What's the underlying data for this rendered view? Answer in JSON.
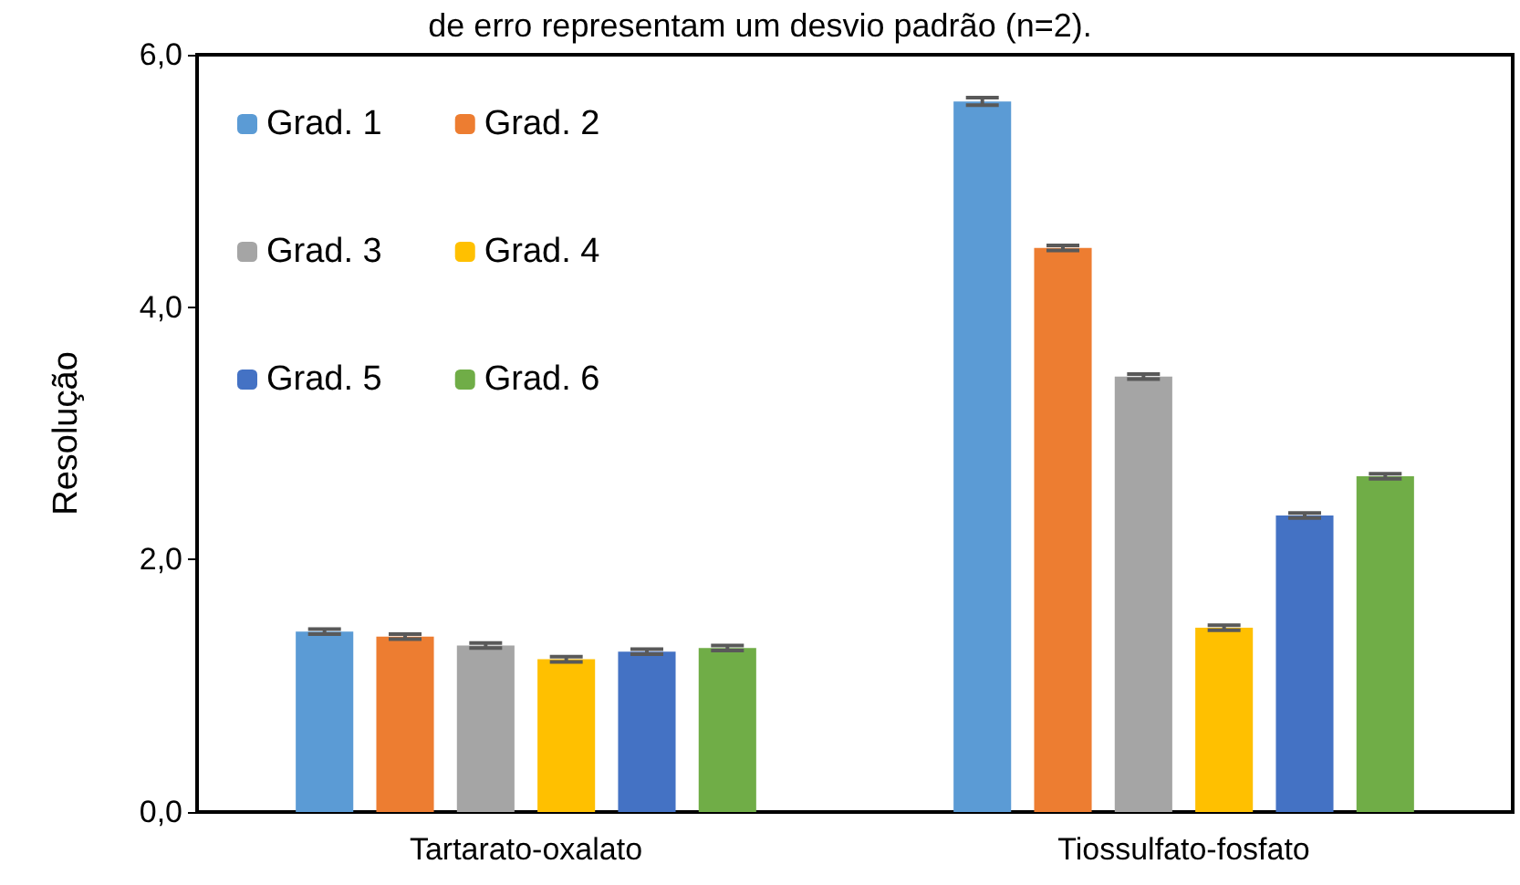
{
  "chart_data": {
    "type": "bar",
    "subtitle": "de erro representam um desvio padrão (n=2).",
    "ylabel": "Resolução",
    "categories": [
      "Tartarato-oxalato",
      "Tiossulfato-fosfato"
    ],
    "series": [
      {
        "name": "Grad. 1",
        "color": "#5b9bd5",
        "values": [
          1.43,
          5.63
        ],
        "errors": [
          0.02,
          0.03
        ]
      },
      {
        "name": "Grad. 2",
        "color": "#ed7d31",
        "values": [
          1.39,
          4.47
        ],
        "errors": [
          0.02,
          0.02
        ]
      },
      {
        "name": "Grad. 3",
        "color": "#a5a5a5",
        "values": [
          1.32,
          3.45
        ],
        "errors": [
          0.02,
          0.02
        ]
      },
      {
        "name": "Grad. 4",
        "color": "#ffc000",
        "values": [
          1.21,
          1.46
        ],
        "errors": [
          0.02,
          0.02
        ]
      },
      {
        "name": "Grad. 5",
        "color": "#4472c4",
        "values": [
          1.27,
          2.35
        ],
        "errors": [
          0.02,
          0.02
        ]
      },
      {
        "name": "Grad. 6",
        "color": "#70ad47",
        "values": [
          1.3,
          2.66
        ],
        "errors": [
          0.02,
          0.02
        ]
      }
    ],
    "ylim": [
      0,
      6
    ],
    "yticks": [
      {
        "value": 0,
        "label": "0,0"
      },
      {
        "value": 2,
        "label": "2,0"
      },
      {
        "value": 4,
        "label": "4,0"
      },
      {
        "value": 6,
        "label": "6,0"
      }
    ],
    "grid": false,
    "legend": "top left"
  }
}
